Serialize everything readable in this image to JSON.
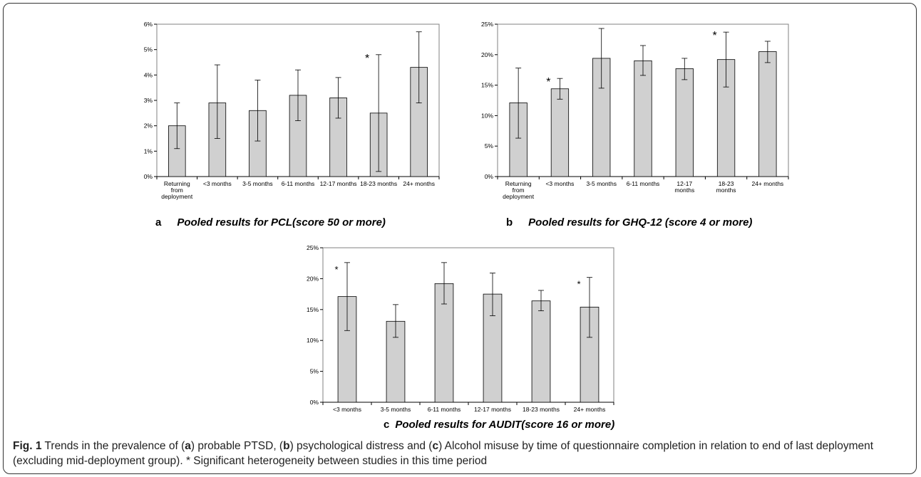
{
  "chart_data": [
    {
      "type": "bar",
      "panel_letter": "a",
      "title": "Pooled results for PCL(score 50 or more)",
      "categories": [
        [
          "Returning",
          "from",
          "deployment"
        ],
        [
          "<3 months"
        ],
        [
          "3-5 months"
        ],
        [
          "6-11 months"
        ],
        [
          "12-17 months"
        ],
        [
          "18-23 months"
        ],
        [
          "24+ months"
        ]
      ],
      "values": [
        2.0,
        2.9,
        2.6,
        3.2,
        3.1,
        2.5,
        4.3
      ],
      "error_low": [
        1.1,
        1.5,
        1.4,
        2.2,
        2.3,
        0.2,
        2.9
      ],
      "error_high": [
        2.9,
        4.4,
        3.8,
        4.2,
        3.9,
        4.8,
        5.7
      ],
      "significant": [
        false,
        false,
        false,
        false,
        false,
        true,
        false
      ],
      "yticks": [
        "0%",
        "1%",
        "2%",
        "3%",
        "4%",
        "5%",
        "6%"
      ],
      "ylim": [
        0,
        6
      ],
      "grid": false,
      "bar_color": "#d0d0d0"
    },
    {
      "type": "bar",
      "panel_letter": "b",
      "title": "Pooled results for GHQ-12 (score 4 or more)",
      "categories": [
        [
          "Returning",
          "from",
          "deployment"
        ],
        [
          "<3 months"
        ],
        [
          "3-5 months"
        ],
        [
          "6-11 months"
        ],
        [
          "12-17",
          "months"
        ],
        [
          "18-23",
          "months"
        ],
        [
          "24+ months"
        ]
      ],
      "values": [
        12.1,
        14.4,
        19.4,
        19.0,
        17.7,
        19.2,
        20.5
      ],
      "error_low": [
        6.3,
        12.7,
        14.5,
        16.6,
        15.9,
        14.7,
        18.7
      ],
      "error_high": [
        17.8,
        16.1,
        24.3,
        21.5,
        19.4,
        23.7,
        22.2
      ],
      "significant": [
        false,
        true,
        false,
        false,
        false,
        true,
        false
      ],
      "yticks": [
        "0%",
        "5%",
        "10%",
        "15%",
        "20%",
        "25%"
      ],
      "ylim": [
        0,
        25
      ],
      "grid": false,
      "bar_color": "#d0d0d0"
    },
    {
      "type": "bar",
      "panel_letter": "c",
      "title": "Pooled results for AUDIT(score 16 or more)",
      "categories": [
        [
          "<3 months"
        ],
        [
          "3-5 months"
        ],
        [
          "6-11 months"
        ],
        [
          "12-17 months"
        ],
        [
          "18-23 months"
        ],
        [
          "24+ months"
        ]
      ],
      "values": [
        17.1,
        13.1,
        19.2,
        17.5,
        16.4,
        15.4
      ],
      "error_low": [
        11.6,
        10.5,
        15.9,
        14.0,
        14.8,
        10.5
      ],
      "error_high": [
        22.6,
        15.8,
        22.6,
        20.9,
        18.1,
        20.2
      ],
      "significant": [
        true,
        false,
        false,
        false,
        false,
        true
      ],
      "yticks": [
        "0%",
        "5%",
        "10%",
        "15%",
        "20%",
        "25%"
      ],
      "ylim": [
        0,
        25
      ],
      "grid": false,
      "bar_color": "#d0d0d0"
    }
  ],
  "caption": {
    "fig_label": "Fig. 1",
    "parts": [
      " Trends in the prevalence of (",
      "a",
      ") probable PTSD, (",
      "b",
      ") psychological distress and (",
      "c",
      ") Alcohol misuse by time of questionnaire completion in relation to end of last deployment (excluding mid-deployment group). * Significant heterogeneity between studies in this time period"
    ]
  }
}
